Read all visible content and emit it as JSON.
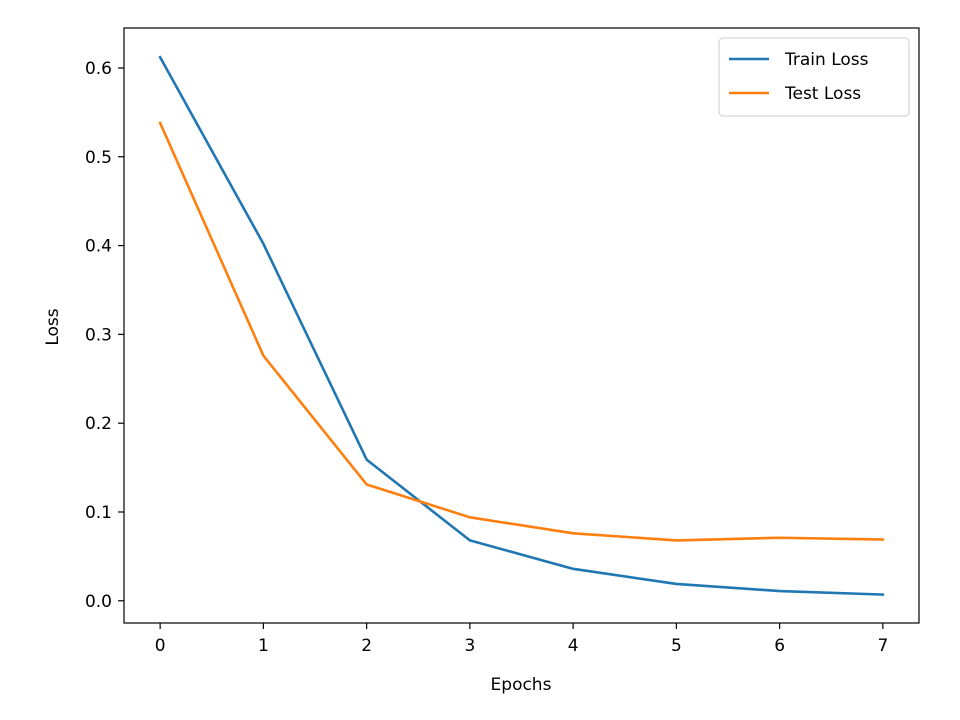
{
  "chart_data": {
    "type": "line",
    "title": "",
    "xlabel": "Epochs",
    "ylabel": "Loss",
    "x": [
      0,
      1,
      2,
      3,
      4,
      5,
      6,
      7
    ],
    "xlim": [
      -0.35,
      7.35
    ],
    "ylim": [
      -0.025,
      0.645
    ],
    "xticks": [
      0,
      1,
      2,
      3,
      4,
      5,
      6,
      7
    ],
    "xtick_labels": [
      "0",
      "1",
      "2",
      "3",
      "4",
      "5",
      "6",
      "7"
    ],
    "yticks": [
      0.0,
      0.1,
      0.2,
      0.3,
      0.4,
      0.5,
      0.6
    ],
    "ytick_labels": [
      "0.0",
      "0.1",
      "0.2",
      "0.3",
      "0.4",
      "0.5",
      "0.6"
    ],
    "grid": false,
    "legend_position": "top-right",
    "series": [
      {
        "name": "Train Loss",
        "color": "#1f77b4",
        "values": [
          0.612,
          0.402,
          0.159,
          0.068,
          0.036,
          0.019,
          0.011,
          0.007
        ]
      },
      {
        "name": "Test Loss",
        "color": "#ff7f0e",
        "values": [
          0.538,
          0.276,
          0.131,
          0.094,
          0.076,
          0.068,
          0.071,
          0.069
        ]
      }
    ]
  }
}
